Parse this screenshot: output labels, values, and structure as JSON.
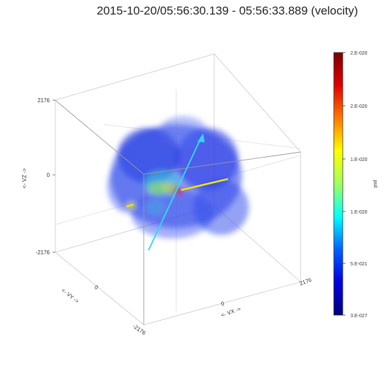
{
  "title": "2015-10-20/05:56:30.139 - 05:56:33.889  (velocity)",
  "chart_data": {
    "type": "volume-3d",
    "axes": {
      "x": {
        "label": "<- VX ->",
        "ticks": [
          "-2176",
          "0",
          "2176"
        ],
        "range": [
          -2176,
          2176
        ]
      },
      "y": {
        "label": "<- VY ->",
        "ticks": [
          "-2176",
          "0",
          "2176"
        ],
        "range": [
          -2176,
          2176
        ]
      },
      "z": {
        "label": "<- VZ ->",
        "ticks": [
          "-2176",
          "0",
          "2176"
        ],
        "range": [
          -2176,
          2176
        ]
      }
    },
    "colorbar": {
      "label": "psd",
      "ticks": [
        "2.E-020",
        "2.E-020",
        "1.E-020",
        "1.E-020",
        "5.E-021",
        "3.E-027"
      ],
      "colors": [
        "#7a0000",
        "#e00000",
        "#ff7a00",
        "#ffff00",
        "#a0ff60",
        "#00ffff",
        "#0060ff",
        "#0000e0",
        "#00007a"
      ]
    },
    "vectors": [
      {
        "name": "cyan-vector",
        "color": "#2fd9f0"
      },
      {
        "name": "yellow-vector",
        "color": "#f0e600"
      }
    ]
  }
}
